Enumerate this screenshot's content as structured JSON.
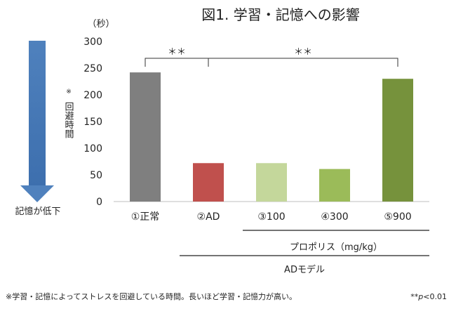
{
  "chart_data": {
    "type": "bar",
    "title": "図1. 学習・記憶への影響",
    "y_unit": "（秒）",
    "ylabel_note": "※",
    "ylabel": "回避時間",
    "ylim": [
      0,
      300
    ],
    "yticks": [
      0,
      50,
      100,
      150,
      200,
      250,
      300
    ],
    "categories": [
      "①正常",
      "②AD",
      "③100",
      "④300",
      "⑤900"
    ],
    "values": [
      242,
      72,
      72,
      61,
      230
    ],
    "colors": [
      "#7f7f7f",
      "#c0504d",
      "#c4d79b",
      "#9bbb59",
      "#76923c"
    ],
    "significance": [
      {
        "from": 0,
        "to": 1,
        "label": "＊＊"
      },
      {
        "from": 1,
        "to": 4,
        "label": "＊＊"
      }
    ],
    "group_labels": [
      {
        "from": 2,
        "to": 4,
        "label": "プロポリス（mg/kg）"
      },
      {
        "from": 1,
        "to": 4,
        "label": "ADモデル"
      }
    ],
    "arrow_label": "記憶が低下",
    "arrow_color": "#4f81bd",
    "footnote": "※学習・記憶によってストレスを回避している時間。長いほど学習・記憶力が高い。",
    "pvalue_note": "**p<0.01",
    "grid": false,
    "legend": "none"
  }
}
